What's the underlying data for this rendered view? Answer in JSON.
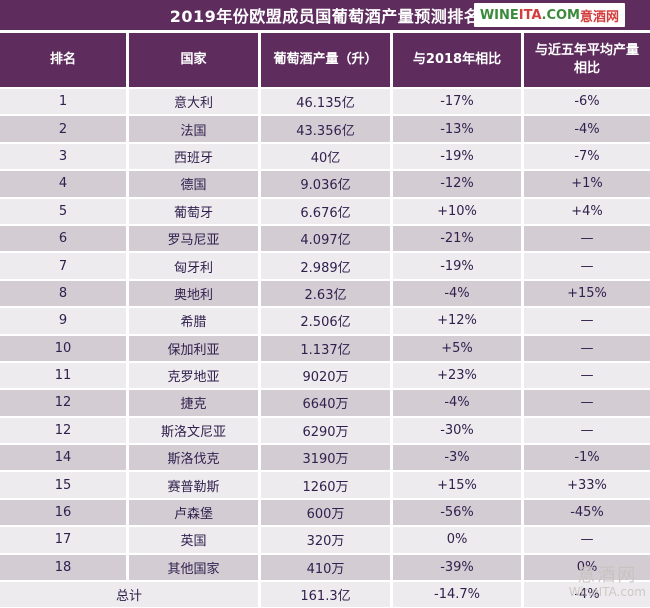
{
  "banner": {
    "title": "2019年份欧盟成员国葡萄酒产量预测排名",
    "logo": {
      "wine": "WINE",
      "ita": "ITA",
      "dotcom": ".COM",
      "cn": "意酒网"
    }
  },
  "chart_data": {
    "type": "table",
    "title": "2019年份欧盟成员国葡萄酒产量预测排名",
    "columns": [
      "排名",
      "国家",
      "葡萄酒产量（升）",
      "与2018年相比",
      "与近五年平均产量相比"
    ],
    "rows": [
      [
        "1",
        "意大利",
        "46.135亿",
        "-17%",
        "-6%"
      ],
      [
        "2",
        "法国",
        "43.356亿",
        "-13%",
        "-4%"
      ],
      [
        "3",
        "西班牙",
        "40亿",
        "-19%",
        "-7%"
      ],
      [
        "4",
        "德国",
        "9.036亿",
        "-12%",
        "+1%"
      ],
      [
        "5",
        "葡萄牙",
        "6.676亿",
        "+10%",
        "+4%"
      ],
      [
        "6",
        "罗马尼亚",
        "4.097亿",
        "-21%",
        "—"
      ],
      [
        "7",
        "匈牙利",
        "2.989亿",
        "-19%",
        "—"
      ],
      [
        "8",
        "奥地利",
        "2.63亿",
        "-4%",
        "+15%"
      ],
      [
        "9",
        "希腊",
        "2.506亿",
        "+12%",
        "—"
      ],
      [
        "10",
        "保加利亚",
        "1.137亿",
        "+5%",
        "—"
      ],
      [
        "11",
        "克罗地亚",
        "9020万",
        "+23%",
        "—"
      ],
      [
        "12",
        "捷克",
        "6640万",
        "-4%",
        "—"
      ],
      [
        "12",
        "斯洛文尼亚",
        "6290万",
        "-30%",
        "—"
      ],
      [
        "14",
        "斯洛伐克",
        "3190万",
        "-3%",
        "-1%"
      ],
      [
        "15",
        "赛普勒斯",
        "1260万",
        "+15%",
        "+33%"
      ],
      [
        "16",
        "卢森堡",
        "600万",
        "-56%",
        "-45%"
      ],
      [
        "17",
        "英国",
        "320万",
        "0%",
        "—"
      ],
      [
        "18",
        "其他国家",
        "410万",
        "-39%",
        "0%"
      ]
    ],
    "total": [
      "总计",
      "161.3亿",
      "-14.7%",
      "-4%"
    ]
  },
  "watermark": {
    "line1": "意酒网",
    "line2": "WineITA.com"
  },
  "colors": {
    "header_purple": "#5E2D5E",
    "row_light": "#EDEBED",
    "row_dark": "#D3CCD3",
    "cell_text": "#31204E",
    "logo_green": "#3B8A3B",
    "logo_red": "#D43C3C",
    "watermark_gray": "#C7C2BE"
  }
}
